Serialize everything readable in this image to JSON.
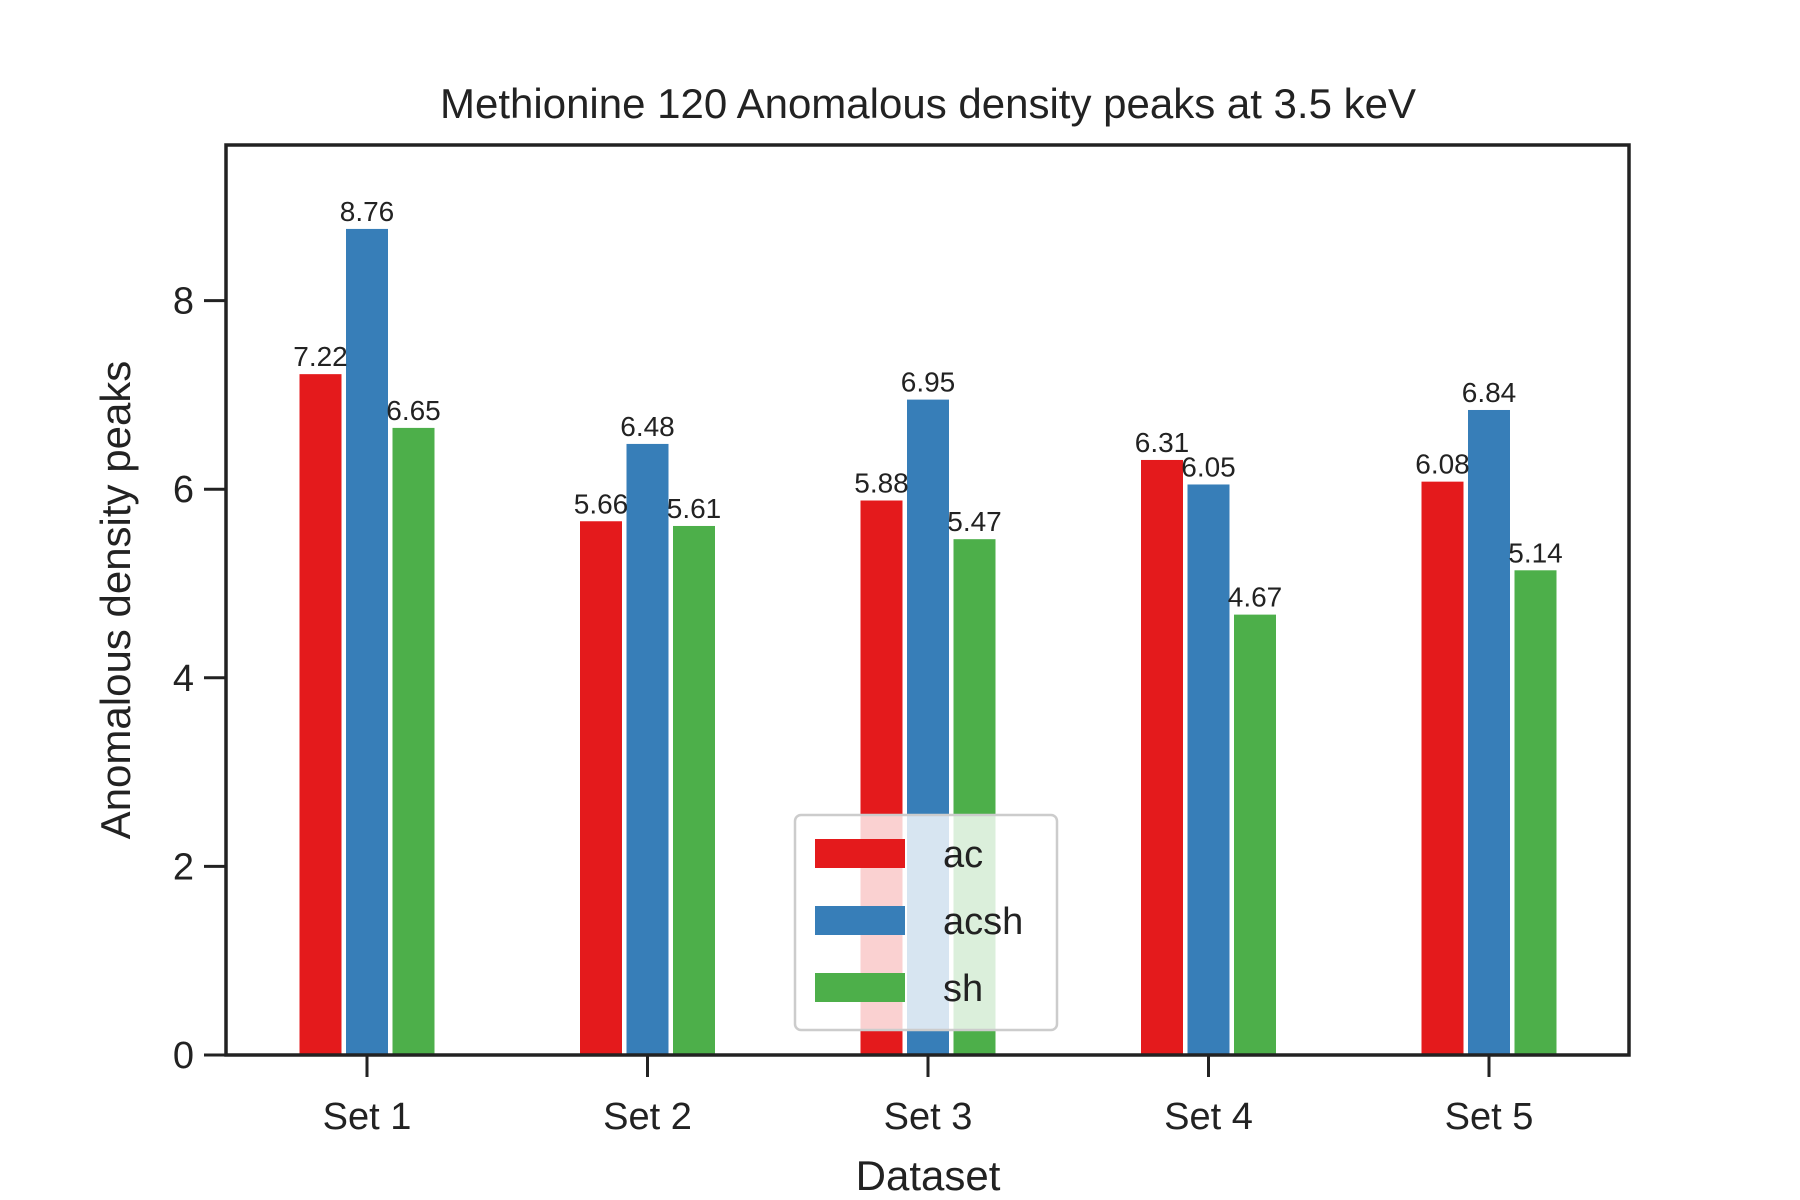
{
  "chart_data": {
    "type": "bar",
    "title": "Methionine 120 Anomalous density peaks at 3.5 keV",
    "xlabel": "Dataset",
    "ylabel": "Anomalous density peaks",
    "categories": [
      "Set 1",
      "Set 2",
      "Set 3",
      "Set 4",
      "Set 5"
    ],
    "series": [
      {
        "name": "ac",
        "color": "#e41a1c",
        "values": [
          7.22,
          5.66,
          5.88,
          6.31,
          6.08
        ],
        "labels": [
          "7.22",
          "5.66",
          "5.88",
          "6.31",
          "6.08"
        ]
      },
      {
        "name": "acsh",
        "color": "#377eb8",
        "values": [
          8.76,
          6.48,
          6.95,
          6.05,
          6.84
        ],
        "labels": [
          "8.76",
          "6.48",
          "6.95",
          "6.05",
          "6.84"
        ]
      },
      {
        "name": "sh",
        "color": "#4daf4a",
        "values": [
          6.65,
          5.61,
          5.47,
          4.67,
          5.14
        ],
        "labels": [
          "6.65",
          "5.61",
          "5.47",
          "4.67",
          "5.14"
        ]
      }
    ],
    "ylim": [
      0,
      9.65
    ],
    "yticks": [
      0,
      2,
      4,
      6,
      8
    ],
    "ytick_labels": [
      "0",
      "2",
      "4",
      "6",
      "8"
    ],
    "grid": false,
    "legend_position": "bottom-center"
  }
}
